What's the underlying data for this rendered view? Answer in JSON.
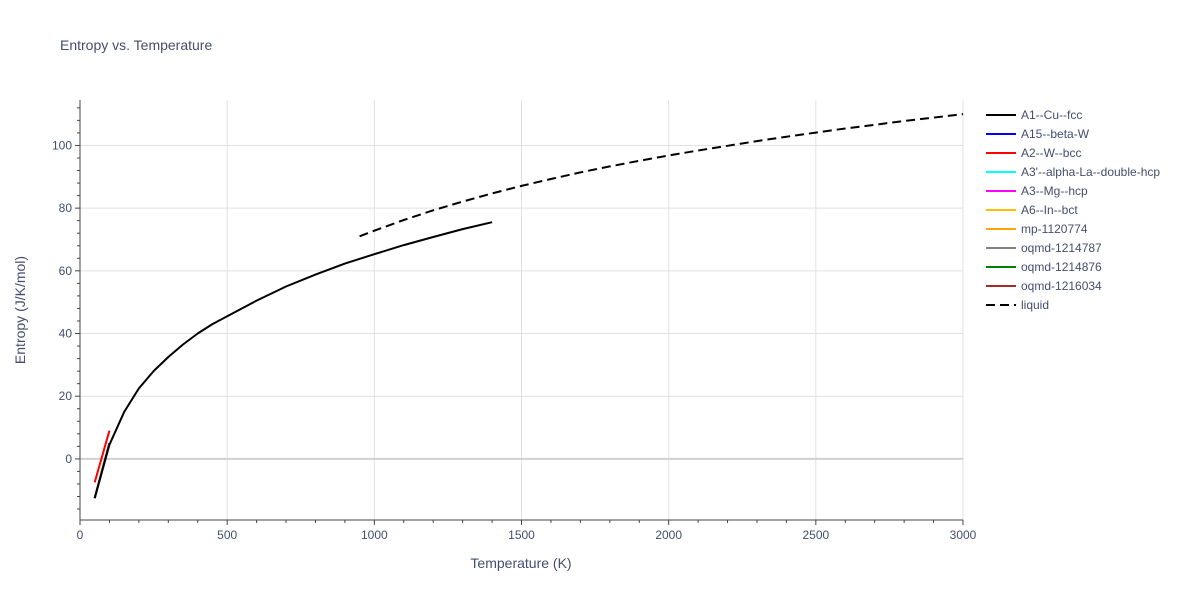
{
  "chart_data": {
    "type": "line",
    "title": "Entropy vs. Temperature",
    "xlabel": "Temperature (K)",
    "ylabel": "Entropy (J/K/mol)",
    "xlim": [
      0,
      3000
    ],
    "ylim": [
      -19.5,
      114.5
    ],
    "x_ticks": [
      0,
      500,
      1000,
      1500,
      2000,
      2500,
      3000
    ],
    "y_ticks": [
      0,
      20,
      40,
      60,
      80,
      100
    ],
    "grid": true,
    "legend_position": "right",
    "series": [
      {
        "name": "A1--Cu--fcc",
        "color": "#000000",
        "dash": "solid",
        "x": [
          50,
          100,
          150,
          200,
          250,
          300,
          350,
          400,
          450,
          500,
          600,
          700,
          800,
          900,
          1000,
          1100,
          1200,
          1300,
          1400
        ],
        "y": [
          -12.5,
          4.5,
          15,
          22.5,
          28,
          32.5,
          36.5,
          40,
          43,
          45.5,
          50.5,
          55,
          58.8,
          62.3,
          65.3,
          68.2,
          70.8,
          73.3,
          75.5
        ]
      },
      {
        "name": "A15--beta-W",
        "color": "#0000ff",
        "dash": "solid",
        "x": [
          50,
          100
        ],
        "y": [
          -12.5,
          5
        ]
      },
      {
        "name": "A2--W--bcc",
        "color": "#ff0000",
        "dash": "solid",
        "x": [
          50,
          100
        ],
        "y": [
          -7.5,
          9
        ]
      },
      {
        "name": "A3'--alpha-La--double-hcp",
        "color": "#00ffff",
        "dash": "solid",
        "x": [
          50,
          100
        ],
        "y": [
          -12.5,
          5
        ]
      },
      {
        "name": "A3--Mg--hcp",
        "color": "#ff00ff",
        "dash": "solid",
        "x": [
          50,
          100
        ],
        "y": [
          -12.5,
          5
        ]
      },
      {
        "name": "A6--In--bct",
        "color": "#ffbf00",
        "dash": "solid",
        "x": [
          50,
          100
        ],
        "y": [
          -12.5,
          5
        ]
      },
      {
        "name": "mp-1120774",
        "color": "#ffa500",
        "dash": "solid",
        "x": [
          50,
          100
        ],
        "y": [
          -12.5,
          5
        ]
      },
      {
        "name": "oqmd-1214787",
        "color": "#808080",
        "dash": "solid",
        "x": [
          50,
          100
        ],
        "y": [
          -12.5,
          5
        ]
      },
      {
        "name": "oqmd-1214876",
        "color": "#008000",
        "dash": "solid",
        "x": [
          50,
          100
        ],
        "y": [
          -12.5,
          5
        ]
      },
      {
        "name": "oqmd-1216034",
        "color": "#a52a2a",
        "dash": "solid",
        "x": [
          50,
          100
        ],
        "y": [
          -12.5,
          5
        ]
      },
      {
        "name": "liquid",
        "color": "#000000",
        "dash": "dash",
        "x": [
          950,
          1000,
          1100,
          1200,
          1300,
          1400,
          1500,
          1600,
          1700,
          1800,
          1900,
          2000,
          2100,
          2200,
          2300,
          2400,
          2500,
          2600,
          2700,
          2800,
          2900,
          3000
        ],
        "y": [
          71,
          72.8,
          76.2,
          79.3,
          82.1,
          84.7,
          87.1,
          89.3,
          91.4,
          93.3,
          95.1,
          96.8,
          98.4,
          99.9,
          101.4,
          102.8,
          104.1,
          105.4,
          106.6,
          107.8,
          108.9,
          110
        ]
      }
    ]
  }
}
